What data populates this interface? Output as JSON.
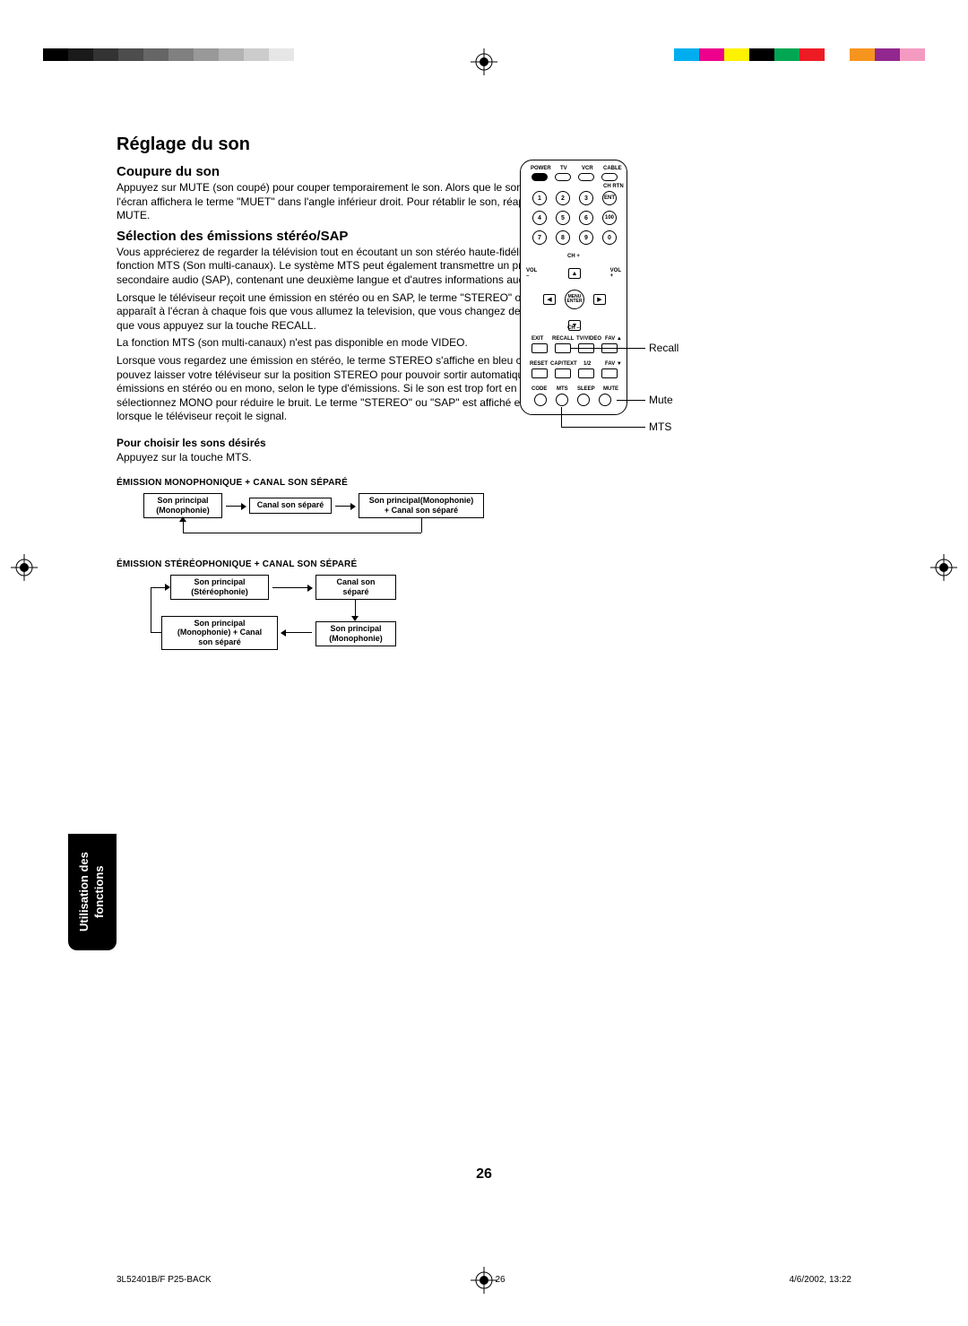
{
  "colorbars": {
    "left": [
      "#000000",
      "#1a1a1a",
      "#333333",
      "#4d4d4d",
      "#666666",
      "#808080",
      "#999999",
      "#b3b3b3",
      "#cccccc",
      "#e6e6e6"
    ],
    "right": [
      "#00aeef",
      "#ec008c",
      "#fff200",
      "#000000",
      "#00a651",
      "#ed1c24",
      "#ffffff",
      "#f7941e",
      "#92278f",
      "#f49ac1"
    ]
  },
  "page": {
    "title": "Réglage du son",
    "section1_title": "Coupure du son",
    "section1_body": "Appuyez sur MUTE (son coupé) pour couper temporairement le son. Alors que le son est coupé, l'écran affichera le terme \"MUET\" dans l'angle inférieur droit. Pour rétablir le son, réappuyez sur MUTE.",
    "section2_title": "Sélection des émissions stéréo/SAP",
    "section2_p1": "Vous apprécierez de regarder la télévision tout en écoutant un son stéréo haute-fidélité grâce à la fonction MTS (Son multi-canaux). Le système MTS peut également transmettre un programme secondaire audio (SAP), contenant une deuxième langue et d'autres informations audio.",
    "section2_p2": "Lorsque le téléviseur reçoit une émission en stéréo ou en SAP, le terme \"STEREO\" ou \"SAP\" apparaît à l'écran à chaque fois que vous allumez la television, que vous changez de chaîne ou que vous appuyez sur la touche RECALL.",
    "section2_p3": "La fonction MTS (son multi-canaux) n'est pas disponible en mode VIDEO.",
    "section2_p4": "Lorsque vous regardez une émission en stéréo, le terme STEREO s'affiche en bleu clair. Vous pouvez laisser votre téléviseur sur la position STEREO pour pouvoir sortir automatiquement des émissions en stéréo ou en mono, selon le type d'émissions. Si le son est trop fort en stéréo, sélectionnez MONO pour réduire le bruit. Le terme \"STEREO\" ou \"SAP\" est affiché en bleu clair lorsque le téléviseur reçoit le signal.",
    "section3_title": "Pour choisir les sons désirés",
    "section3_body": "Appuyez sur la touche MTS.",
    "diagram1_title": "ÉMISSION MONOPHONIQUE + CANAL SON SÉPARÉ",
    "diagram1_box1": "Son principal\n(Monophonie)",
    "diagram1_box2": "Canal son séparé",
    "diagram1_box3": "Son principal(Monophonie)\n+ Canal son séparé",
    "diagram2_title": "ÉMISSION STÉRÉOPHONIQUE + CANAL SON SÉPARÉ",
    "diagram2_box1": "Son principal\n(Stéréophonie)",
    "diagram2_box2": "Canal son\nséparé",
    "diagram2_box3": "Son principal\n(Monophonie) + Canal\nson séparé",
    "diagram2_box4": "Son principal\n(Monophonie)",
    "sidetab": "Utilisation des\nfonctions",
    "pagenum": "26",
    "footer_left": "3L52401B/F P25-BACK",
    "footer_mid": "26",
    "footer_right": "4/6/2002, 13:22"
  },
  "remote": {
    "top_labels": [
      "POWER",
      "TV",
      "VCR",
      "CABLE"
    ],
    "chrtn": "CH RTN",
    "numbers": [
      "1",
      "2",
      "3",
      "ENT",
      "4",
      "5",
      "6",
      "100",
      "7",
      "8",
      "9",
      "0"
    ],
    "chplus": "CH +",
    "chminus": "CH –",
    "vol_l": "VOL\n–",
    "vol_r": "VOL\n+",
    "menu": "MENU\nENTER",
    "row1_labels": [
      "EXIT",
      "RECALL",
      "TV/VIDEO",
      "FAV ▲"
    ],
    "row2_labels": [
      "RESET",
      "CAP/TEXT",
      "1/2",
      "FAV ▼"
    ],
    "row3_labels": [
      "CODE",
      "MTS",
      "SLEEP",
      "MUTE"
    ],
    "callout_recall": "Recall",
    "callout_mute": "Mute",
    "callout_mts": "MTS"
  }
}
